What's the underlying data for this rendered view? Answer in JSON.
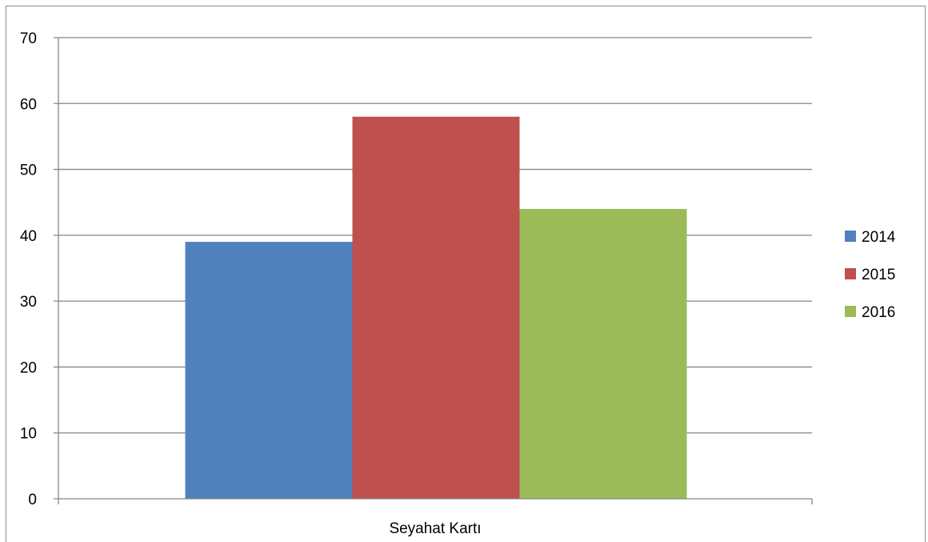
{
  "chart_data": {
    "type": "bar",
    "title": "",
    "xlabel": "",
    "ylabel": "",
    "categories": [
      "Seyahat Kartı"
    ],
    "series": [
      {
        "name": "2014",
        "values": [
          39
        ],
        "color": "#4f81bd"
      },
      {
        "name": "2015",
        "values": [
          58
        ],
        "color": "#c0504d"
      },
      {
        "name": "2016",
        "values": [
          44
        ],
        "color": "#9bbb59"
      }
    ],
    "ylim": [
      0,
      70
    ],
    "yticks": [
      0,
      10,
      20,
      30,
      40,
      50,
      60,
      70
    ],
    "grid": true,
    "legend_position": "right",
    "gridline_color": "#868686",
    "axis_color": "#868686"
  }
}
